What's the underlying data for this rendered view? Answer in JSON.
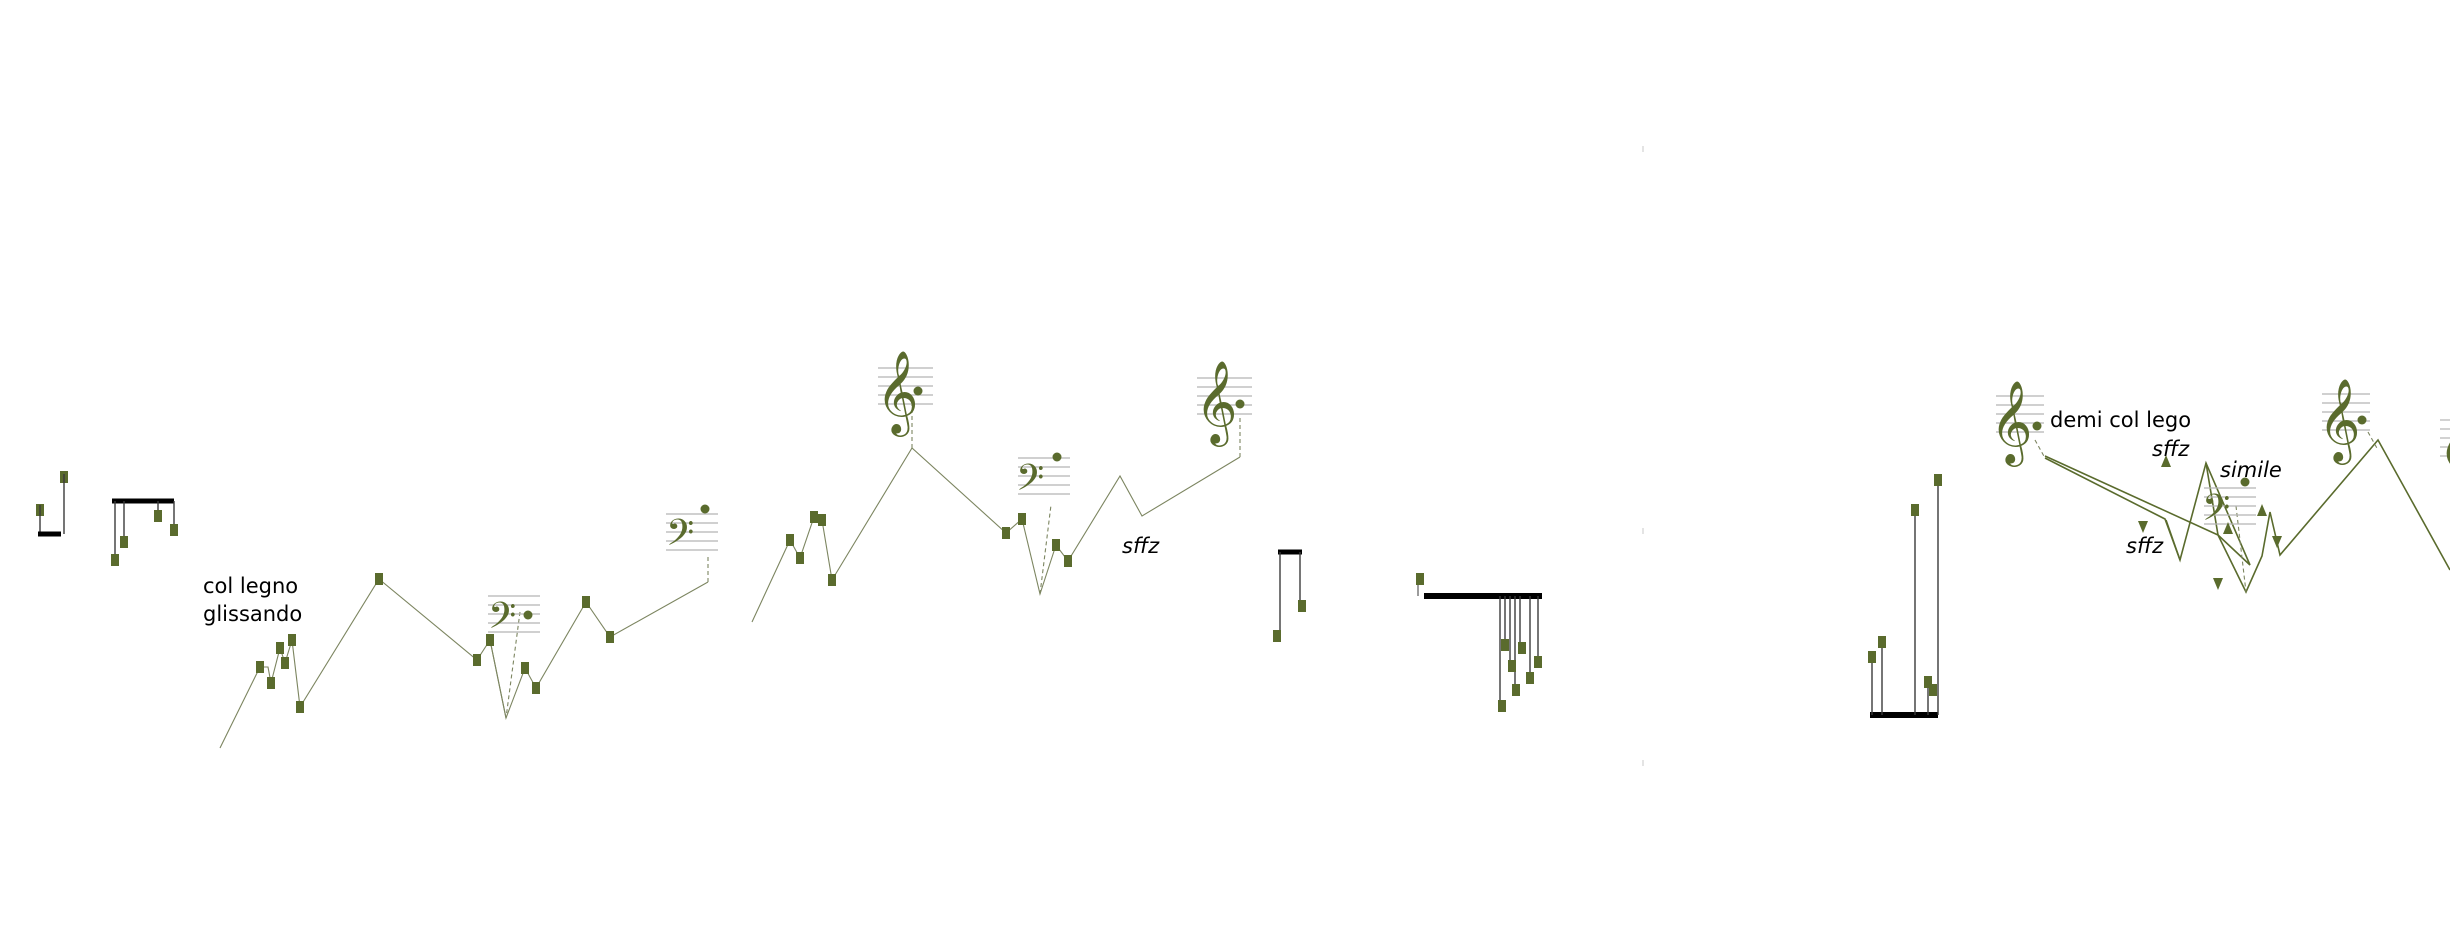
{
  "colors": {
    "ink": "#5a6b2d",
    "ink_line": "#7c8560",
    "stem": "#3a3a3a",
    "beam": "#000000",
    "staff": "#b5b5b5",
    "background": "#ffffff"
  },
  "annotations": {
    "col_legno": "col legno",
    "glissando": "glissando",
    "demi_col_lego": "demi col lego",
    "simile": "simile"
  },
  "dynamics": {
    "sffz_mid": "sffz",
    "sffz_right_upper": "sffz",
    "sffz_right_lower": "sffz"
  },
  "clefs": {
    "treble": "𝄞",
    "bass": "𝄢"
  },
  "icons": [
    "treble-clef-icon",
    "bass-clef-icon",
    "notehead-icon",
    "arrowhead-icon"
  ]
}
